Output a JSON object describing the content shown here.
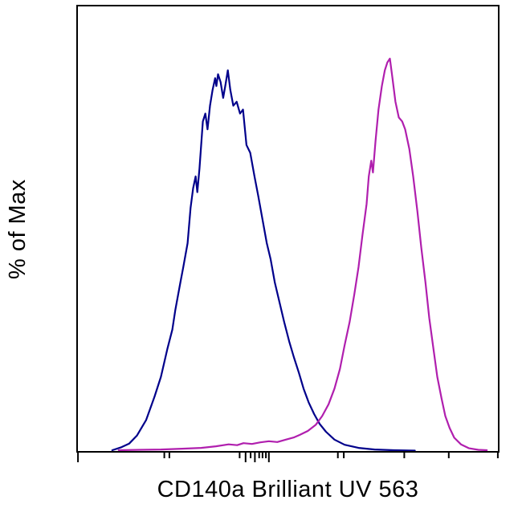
{
  "figure": {
    "background_color": "#ffffff",
    "frame_color": "#000000"
  },
  "chart_data": {
    "type": "line",
    "subtype": "flow-cytometry-histogram-overlay",
    "title": "",
    "xlabel": "CD140a Brilliant UV 563",
    "ylabel": "% of Max",
    "ylim": [
      0,
      100
    ],
    "x_axis_numeric_labels_visible": false,
    "grid": false,
    "legend": "none",
    "layout": {
      "peak_height_frac": 0.88,
      "line_width": 2.2
    },
    "series": [
      {
        "name": "negative-control-blue",
        "color": "#00008b",
        "points": [
          [
            8.5,
            0.3
          ],
          [
            10.5,
            1
          ],
          [
            12.5,
            2
          ],
          [
            14.3,
            4
          ],
          [
            16.5,
            8
          ],
          [
            18.5,
            14
          ],
          [
            20,
            19
          ],
          [
            21.5,
            26
          ],
          [
            22.7,
            31
          ],
          [
            23.4,
            36
          ],
          [
            24.6,
            43
          ],
          [
            25.3,
            47
          ],
          [
            26.3,
            53
          ],
          [
            27,
            62
          ],
          [
            27.6,
            67
          ],
          [
            28.2,
            70
          ],
          [
            28.6,
            66
          ],
          [
            29.1,
            72
          ],
          [
            29.9,
            84
          ],
          [
            30.5,
            86
          ],
          [
            31,
            82
          ],
          [
            31.6,
            88
          ],
          [
            32.2,
            92
          ],
          [
            32.8,
            95
          ],
          [
            33.1,
            93
          ],
          [
            33.5,
            96
          ],
          [
            34.1,
            94
          ],
          [
            34.7,
            90
          ],
          [
            35.2,
            93
          ],
          [
            35.8,
            97
          ],
          [
            36.4,
            92
          ],
          [
            37.1,
            88
          ],
          [
            37.9,
            89
          ],
          [
            38.7,
            86
          ],
          [
            39.4,
            87
          ],
          [
            40.2,
            78
          ],
          [
            41.1,
            76
          ],
          [
            42.1,
            70
          ],
          [
            43,
            65
          ],
          [
            44,
            59
          ],
          [
            45,
            53
          ],
          [
            45.9,
            49
          ],
          [
            46.9,
            43
          ],
          [
            48,
            38
          ],
          [
            49.1,
            33
          ],
          [
            50.3,
            28
          ],
          [
            51.4,
            24
          ],
          [
            52.6,
            20
          ],
          [
            53.7,
            16
          ],
          [
            54.9,
            12.5
          ],
          [
            56.2,
            9.5
          ],
          [
            57.5,
            7
          ],
          [
            59,
            5
          ],
          [
            61,
            3
          ],
          [
            63.4,
            1.7
          ],
          [
            66.7,
            0.9
          ],
          [
            70.5,
            0.5
          ],
          [
            75,
            0.3
          ],
          [
            80,
            0.2
          ]
        ]
      },
      {
        "name": "stained-magenta",
        "color": "#b01fae",
        "points": [
          [
            10,
            0.3
          ],
          [
            15,
            0.4
          ],
          [
            20,
            0.5
          ],
          [
            25,
            0.7
          ],
          [
            29.5,
            0.9
          ],
          [
            33,
            1.3
          ],
          [
            36,
            1.8
          ],
          [
            38,
            1.6
          ],
          [
            39.5,
            2.1
          ],
          [
            41.5,
            1.9
          ],
          [
            43.5,
            2.3
          ],
          [
            45.5,
            2.6
          ],
          [
            47.5,
            2.4
          ],
          [
            49.5,
            3
          ],
          [
            51.5,
            3.6
          ],
          [
            52.8,
            4.2
          ],
          [
            54.7,
            5.2
          ],
          [
            56.6,
            6.8
          ],
          [
            58.1,
            9
          ],
          [
            59.6,
            12
          ],
          [
            61,
            16
          ],
          [
            62.3,
            21
          ],
          [
            63.4,
            27
          ],
          [
            64.6,
            33
          ],
          [
            65.7,
            40
          ],
          [
            66.7,
            47
          ],
          [
            67.6,
            55
          ],
          [
            68.6,
            63
          ],
          [
            69.1,
            70
          ],
          [
            69.7,
            74
          ],
          [
            70.1,
            71
          ],
          [
            70.7,
            79
          ],
          [
            71.4,
            87
          ],
          [
            72.2,
            93
          ],
          [
            72.9,
            97
          ],
          [
            73.5,
            99
          ],
          [
            74.1,
            100
          ],
          [
            74.7,
            95
          ],
          [
            75.4,
            89
          ],
          [
            76.2,
            85
          ],
          [
            77,
            84
          ],
          [
            77.7,
            82
          ],
          [
            78.7,
            77
          ],
          [
            79.6,
            70
          ],
          [
            80.6,
            61
          ],
          [
            81.5,
            52
          ],
          [
            82.5,
            43
          ],
          [
            83.4,
            34
          ],
          [
            84.4,
            26
          ],
          [
            85.3,
            19
          ],
          [
            86.3,
            13.5
          ],
          [
            87.2,
            9
          ],
          [
            88.2,
            6
          ],
          [
            89.3,
            3.5
          ],
          [
            90.9,
            1.8
          ],
          [
            92.8,
            0.8
          ],
          [
            95,
            0.4
          ],
          [
            97,
            0.3
          ]
        ]
      }
    ],
    "x_ticks": [
      {
        "x": 0.4,
        "size": "major"
      },
      {
        "x": 20.8,
        "size": "minor"
      },
      {
        "x": 22.0,
        "size": "minor"
      },
      {
        "x": 38.6,
        "size": "minor"
      },
      {
        "x": 40.0,
        "size": "major"
      },
      {
        "x": 41.2,
        "size": "minor"
      },
      {
        "x": 42.2,
        "size": "major"
      },
      {
        "x": 43.2,
        "size": "minor"
      },
      {
        "x": 44.0,
        "size": "minor"
      },
      {
        "x": 44.8,
        "size": "minor"
      },
      {
        "x": 45.5,
        "size": "major"
      },
      {
        "x": 61.8,
        "size": "minor"
      },
      {
        "x": 63.2,
        "size": "minor"
      },
      {
        "x": 77.5,
        "size": "minor"
      },
      {
        "x": 88.0,
        "size": "minor"
      },
      {
        "x": 99.6,
        "size": "minor"
      }
    ]
  }
}
